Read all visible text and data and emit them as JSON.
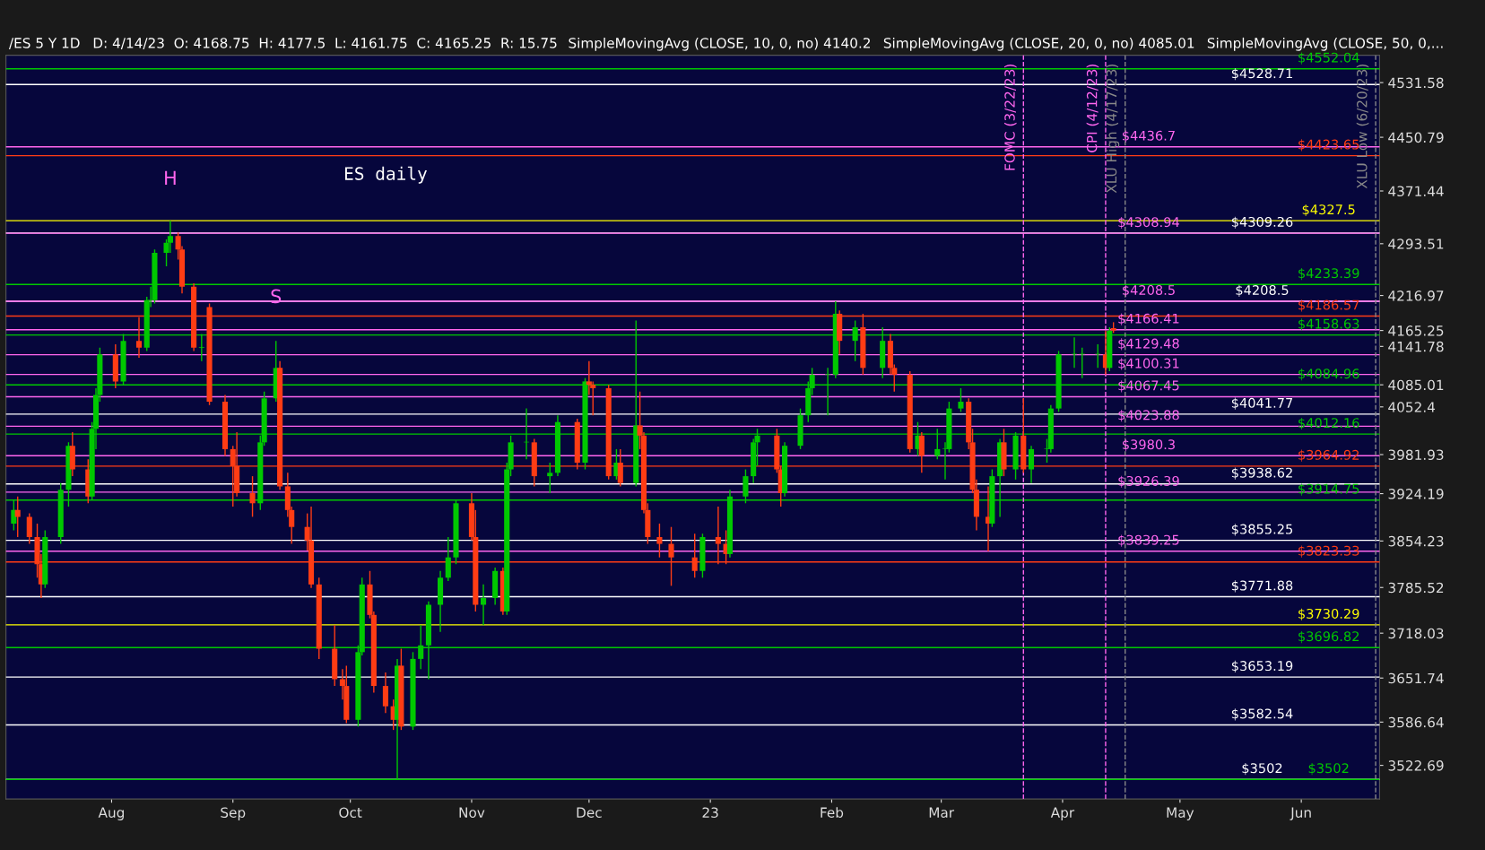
{
  "chart_data": {
    "type": "candlestick",
    "title": "ES daily",
    "annotations": [
      "/ES 5 Y 1D",
      "D: 4/14/23  O: 4168.75  H: 4177.5  L: 4161.75  C: 4165.25  R: 15.75",
      "SimpleMovingAvg (CLOSE, 10, 0, no) 4140.2",
      "SimpleMovingAvg (CLOSE, 20, 0, no) 4085.01",
      "SimpleMovingAvg (CLOSE, 50, 0,...",
      "H",
      "S"
    ],
    "x": [
      "2022-07-07",
      "2022-07-08",
      "2022-07-11",
      "2022-07-13",
      "2022-07-14",
      "2022-07-15",
      "2022-07-19",
      "2022-07-21",
      "2022-07-22",
      "2022-07-26",
      "2022-07-27",
      "2022-07-28",
      "2022-07-29",
      "2022-08-02",
      "2022-08-04",
      "2022-08-08",
      "2022-08-10",
      "2022-08-11",
      "2022-08-12",
      "2022-08-15",
      "2022-08-16",
      "2022-08-18",
      "2022-08-19",
      "2022-08-22",
      "2022-08-24",
      "2022-08-26",
      "2022-08-30",
      "2022-09-01",
      "2022-09-02",
      "2022-09-06",
      "2022-09-08",
      "2022-09-09",
      "2022-09-12",
      "2022-09-13",
      "2022-09-15",
      "2022-09-16",
      "2022-09-20",
      "2022-09-21",
      "2022-09-23",
      "2022-09-27",
      "2022-09-29",
      "2022-09-30",
      "2022-10-03",
      "2022-10-04",
      "2022-10-06",
      "2022-10-07",
      "2022-10-10",
      "2022-10-12",
      "2022-10-13",
      "2022-10-14",
      "2022-10-17",
      "2022-10-19",
      "2022-10-21",
      "2022-10-24",
      "2022-10-26",
      "2022-10-28",
      "2022-11-01",
      "2022-11-02",
      "2022-11-04",
      "2022-11-07",
      "2022-11-09",
      "2022-11-10",
      "2022-11-11",
      "2022-11-15",
      "2022-11-17",
      "2022-11-21",
      "2022-11-23",
      "2022-11-28",
      "2022-11-30",
      "2022-12-01",
      "2022-12-02",
      "2022-12-06",
      "2022-12-08",
      "2022-12-09",
      "2022-12-13",
      "2022-12-14",
      "2022-12-15",
      "2022-12-16",
      "2022-12-19",
      "2022-12-22",
      "2022-12-28",
      "2022-12-30",
      "2023-01-03",
      "2023-01-05",
      "2023-01-06",
      "2023-01-10",
      "2023-01-12",
      "2023-01-13",
      "2023-01-18",
      "2023-01-19",
      "2023-01-20",
      "2023-01-24",
      "2023-01-26",
      "2023-01-27",
      "2023-01-31",
      "2023-02-02",
      "2023-02-03",
      "2023-02-07",
      "2023-02-09",
      "2023-02-14",
      "2023-02-16",
      "2023-02-17",
      "2023-02-21",
      "2023-02-23",
      "2023-02-24",
      "2023-02-28",
      "2023-03-02",
      "2023-03-03",
      "2023-03-06",
      "2023-03-08",
      "2023-03-09",
      "2023-03-10",
      "2023-03-13",
      "2023-03-14",
      "2023-03-16",
      "2023-03-17",
      "2023-03-20",
      "2023-03-22",
      "2023-03-24",
      "2023-03-28",
      "2023-03-29",
      "2023-03-31",
      "2023-04-04",
      "2023-04-06",
      "2023-04-10",
      "2023-04-12",
      "2023-04-13",
      "2023-04-14"
    ],
    "ohlc": [
      [
        3880,
        3915,
        3870,
        3900
      ],
      [
        3900,
        3920,
        3860,
        3890
      ],
      [
        3890,
        3895,
        3850,
        3860
      ],
      [
        3860,
        3880,
        3800,
        3820
      ],
      [
        3820,
        3835,
        3770,
        3790
      ],
      [
        3790,
        3870,
        3785,
        3860
      ],
      [
        3860,
        3940,
        3850,
        3930
      ],
      [
        3930,
        4000,
        3905,
        3995
      ],
      [
        3995,
        4015,
        3950,
        3960
      ],
      [
        3960,
        3975,
        3910,
        3920
      ],
      [
        3920,
        4030,
        3915,
        4020
      ],
      [
        4020,
        4080,
        3990,
        4070
      ],
      [
        4070,
        4140,
        4060,
        4130
      ],
      [
        4130,
        4145,
        4080,
        4090
      ],
      [
        4090,
        4160,
        4085,
        4150
      ],
      [
        4150,
        4185,
        4125,
        4140
      ],
      [
        4140,
        4215,
        4135,
        4210
      ],
      [
        4210,
        4230,
        4200,
        4210
      ],
      [
        4210,
        4285,
        4205,
        4280
      ],
      [
        4280,
        4300,
        4260,
        4295
      ],
      [
        4295,
        4327.5,
        4280,
        4305
      ],
      [
        4305,
        4310,
        4270,
        4285
      ],
      [
        4285,
        4290,
        4220,
        4230
      ],
      [
        4230,
        4235,
        4135,
        4140
      ],
      [
        4140,
        4160,
        4120,
        4140
      ],
      [
        4200,
        4205,
        4055,
        4060
      ],
      [
        4060,
        4070,
        3980,
        3990
      ],
      [
        3990,
        3995,
        3905,
        3965
      ],
      [
        3965,
        4015,
        3920,
        3925
      ],
      [
        3925,
        3950,
        3890,
        3910
      ],
      [
        3910,
        4010,
        3900,
        4000
      ],
      [
        4000,
        4075,
        3995,
        4065
      ],
      [
        4065,
        4150,
        4060,
        4110
      ],
      [
        4110,
        4120,
        3930,
        3935
      ],
      [
        3935,
        3955,
        3890,
        3900
      ],
      [
        3900,
        3905,
        3850,
        3875
      ],
      [
        3875,
        3895,
        3840,
        3855
      ],
      [
        3855,
        3905,
        3785,
        3790
      ],
      [
        3790,
        3800,
        3680,
        3695
      ],
      [
        3695,
        3730,
        3640,
        3650
      ],
      [
        3650,
        3665,
        3620,
        3640
      ],
      [
        3640,
        3670,
        3585,
        3590
      ],
      [
        3590,
        3700,
        3580,
        3690
      ],
      [
        3690,
        3800,
        3685,
        3790
      ],
      [
        3790,
        3810,
        3740,
        3745
      ],
      [
        3745,
        3750,
        3630,
        3640
      ],
      [
        3640,
        3660,
        3600,
        3610
      ],
      [
        3610,
        3620,
        3575,
        3590
      ],
      [
        3590,
        3680,
        3502,
        3670
      ],
      [
        3670,
        3695,
        3575,
        3580
      ],
      [
        3580,
        3690,
        3575,
        3680
      ],
      [
        3680,
        3730,
        3665,
        3700
      ],
      [
        3700,
        3765,
        3650,
        3760
      ],
      [
        3760,
        3810,
        3720,
        3800
      ],
      [
        3800,
        3860,
        3795,
        3830
      ],
      [
        3830,
        3915,
        3820,
        3910
      ],
      [
        3910,
        3925,
        3855,
        3860
      ],
      [
        3860,
        3900,
        3750,
        3760
      ],
      [
        3760,
        3790,
        3730,
        3770
      ],
      [
        3770,
        3815,
        3760,
        3810
      ],
      [
        3810,
        3815,
        3745,
        3750
      ],
      [
        3750,
        3970,
        3745,
        3960
      ],
      [
        3960,
        4010,
        3950,
        4000
      ],
      [
        4000,
        4050,
        3975,
        4000
      ],
      [
        4000,
        4005,
        3935,
        3950
      ],
      [
        3950,
        3970,
        3925,
        3955
      ],
      [
        3955,
        4040,
        3950,
        4030
      ],
      [
        4030,
        4035,
        3960,
        3970
      ],
      [
        3970,
        4095,
        3960,
        4090
      ],
      [
        4090,
        4120,
        4070,
        4085
      ],
      [
        4085,
        4090,
        4040,
        4080
      ],
      [
        4080,
        4085,
        3945,
        3950
      ],
      [
        3950,
        3990,
        3945,
        3970
      ],
      [
        3970,
        3990,
        3935,
        3940
      ],
      [
        3940,
        4180,
        3935,
        4025
      ],
      [
        4025,
        4075,
        3990,
        4010
      ],
      [
        4010,
        4015,
        3895,
        3900
      ],
      [
        3900,
        3910,
        3850,
        3860
      ],
      [
        3860,
        3880,
        3830,
        3850
      ],
      [
        3850,
        3875,
        3788,
        3830
      ],
      [
        3830,
        3865,
        3800,
        3810
      ],
      [
        3810,
        3865,
        3800,
        3860
      ],
      [
        3860,
        3905,
        3820,
        3850
      ],
      [
        3850,
        3870,
        3820,
        3835
      ],
      [
        3835,
        3930,
        3830,
        3920
      ],
      [
        3920,
        3960,
        3910,
        3950
      ],
      [
        3950,
        4005,
        3940,
        4000
      ],
      [
        4000,
        4020,
        3965,
        4010
      ],
      [
        4010,
        4020,
        3955,
        3960
      ],
      [
        3960,
        3965,
        3905,
        3925
      ],
      [
        3925,
        4000,
        3920,
        3995
      ],
      [
        3995,
        4050,
        3990,
        4040
      ],
      [
        4040,
        4090,
        4030,
        4080
      ],
      [
        4080,
        4110,
        4070,
        4100
      ],
      [
        4100,
        4110,
        4040,
        4100
      ],
      [
        4100,
        4208.5,
        4095,
        4190
      ],
      [
        4190,
        4195,
        4130,
        4150
      ],
      [
        4150,
        4180,
        4120,
        4170
      ],
      [
        4170,
        4190,
        4100,
        4110
      ],
      [
        4110,
        4170,
        4095,
        4150
      ],
      [
        4150,
        4160,
        4100,
        4110
      ],
      [
        4110,
        4115,
        4075,
        4100
      ],
      [
        4100,
        4105,
        3985,
        3990
      ],
      [
        3990,
        4030,
        3980,
        4010
      ],
      [
        4010,
        4015,
        3955,
        3980
      ],
      [
        3980,
        4020,
        3975,
        3990
      ],
      [
        3990,
        4000,
        3945,
        3990
      ],
      [
        3990,
        4060,
        3985,
        4050
      ],
      [
        4050,
        4080,
        4045,
        4060
      ],
      [
        4060,
        4065,
        3990,
        4000
      ],
      [
        4000,
        4020,
        3925,
        3930
      ],
      [
        3930,
        3945,
        3870,
        3890
      ],
      [
        3890,
        3935,
        3839.25,
        3880
      ],
      [
        3880,
        3960,
        3875,
        3950
      ],
      [
        3950,
        4005,
        3890,
        4000
      ],
      [
        4000,
        4020,
        3950,
        3960
      ],
      [
        3960,
        4015,
        3945,
        4010
      ],
      [
        4010,
        4065,
        3955,
        3960
      ],
      [
        3960,
        3995,
        3940,
        3990
      ],
      [
        3990,
        4005,
        3970,
        3990
      ],
      [
        3990,
        4055,
        3985,
        4050
      ],
      [
        4050,
        4135,
        4045,
        4130
      ],
      [
        4130,
        4155,
        4110,
        4130
      ],
      [
        4130,
        4140,
        4095,
        4130
      ],
      [
        4130,
        4145,
        4110,
        4130
      ],
      [
        4130,
        4165,
        4100,
        4110
      ],
      [
        4110,
        4170,
        4105,
        4165
      ],
      [
        4168.75,
        4177.5,
        4161.75,
        4165.25
      ]
    ],
    "xlim": [
      "2022-07-05",
      "2023-06-21"
    ],
    "xticks": [
      {
        "value": "2022-08-01",
        "label": "Aug"
      },
      {
        "value": "2022-09-01",
        "label": "Sep"
      },
      {
        "value": "2022-10-01",
        "label": "Oct"
      },
      {
        "value": "2022-11-01",
        "label": "Nov"
      },
      {
        "value": "2022-12-01",
        "label": "Dec"
      },
      {
        "value": "2023-01-01",
        "label": "23"
      },
      {
        "value": "2023-02-01",
        "label": "Feb"
      },
      {
        "value": "2023-03-01",
        "label": "Mar"
      },
      {
        "value": "2023-04-01",
        "label": "Apr"
      },
      {
        "value": "2023-05-01",
        "label": "May"
      },
      {
        "value": "2023-06-01",
        "label": "Jun"
      }
    ],
    "ylim": [
      3473,
      4572
    ],
    "yticks": [
      4531.58,
      4450.79,
      4371.44,
      4293.51,
      4216.97,
      4165.25,
      4141.78,
      4085.01,
      4052.4,
      3981.93,
      3924.19,
      3854.23,
      3785.52,
      3718.03,
      3651.74,
      3586.64,
      3522.69
    ],
    "grid": false,
    "legend": false,
    "ref_lines": [
      {
        "axis": "y",
        "value": 4552.04,
        "label": "$4552.04",
        "color": "#00c800"
      },
      {
        "axis": "y",
        "value": 4528.71,
        "label": "$4528.71",
        "color": "#ffffff"
      },
      {
        "axis": "y",
        "value": 4436.7,
        "label": "$4436.7",
        "color": "#ff66ee"
      },
      {
        "axis": "y",
        "value": 4423.65,
        "label": "$4423.65",
        "color": "#ff3c14"
      },
      {
        "axis": "y",
        "value": 4327.5,
        "label": "$4327.5",
        "color": "#ffff00"
      },
      {
        "axis": "y",
        "value": 4309.26,
        "label": "$4309.26",
        "color": "#ffffff"
      },
      {
        "axis": "y",
        "value": 4308.94,
        "label": "$4308.94",
        "color": "#ff66ee"
      },
      {
        "axis": "y",
        "value": 4233.39,
        "label": "$4233.39",
        "color": "#00c800"
      },
      {
        "axis": "y",
        "value": 4208.5,
        "label": "$4208.5",
        "color": "#ffffff"
      },
      {
        "axis": "y",
        "value": 4208.49,
        "label": "$4208.5",
        "color": "#ff66ee"
      },
      {
        "axis": "y",
        "value": 4186.57,
        "label": "$4186.57",
        "color": "#ff3c14"
      },
      {
        "axis": "y",
        "value": 4166.41,
        "label": "$4166.41",
        "color": "#ff66ee"
      },
      {
        "axis": "y",
        "value": 4158.63,
        "label": "$4158.63",
        "color": "#00c800"
      },
      {
        "axis": "y",
        "value": 4129.48,
        "label": "$4129.48",
        "color": "#ff66ee"
      },
      {
        "axis": "y",
        "value": 4100.31,
        "label": "$4100.31",
        "color": "#ff66ee"
      },
      {
        "axis": "y",
        "value": 4084.96,
        "label": "$4084.96",
        "color": "#00c800"
      },
      {
        "axis": "y",
        "value": 4067.45,
        "label": "$4067.45",
        "color": "#ff66ee"
      },
      {
        "axis": "y",
        "value": 4041.77,
        "label": "$4041.77",
        "color": "#ffffff"
      },
      {
        "axis": "y",
        "value": 4023.88,
        "label": "$4023.88",
        "color": "#ff66ee"
      },
      {
        "axis": "y",
        "value": 4012.16,
        "label": "$4012.16",
        "color": "#00c800"
      },
      {
        "axis": "y",
        "value": 3980.3,
        "label": "$3980.3",
        "color": "#ff66ee"
      },
      {
        "axis": "y",
        "value": 3964.92,
        "label": "$3964.92",
        "color": "#ff3c14"
      },
      {
        "axis": "y",
        "value": 3938.62,
        "label": "$3938.62",
        "color": "#ffffff"
      },
      {
        "axis": "y",
        "value": 3926.39,
        "label": "$3926.39",
        "color": "#ff66ee"
      },
      {
        "axis": "y",
        "value": 3914.75,
        "label": "$3914.75",
        "color": "#00c800"
      },
      {
        "axis": "y",
        "value": 3855.25,
        "label": "$3855.25",
        "color": "#ffffff"
      },
      {
        "axis": "y",
        "value": 3839.25,
        "label": "$3839.25",
        "color": "#ff66ee"
      },
      {
        "axis": "y",
        "value": 3823.33,
        "label": "$3823.33",
        "color": "#ff3c14"
      },
      {
        "axis": "y",
        "value": 3771.88,
        "label": "$3771.88",
        "color": "#ffffff"
      },
      {
        "axis": "y",
        "value": 3730.29,
        "label": "$3730.29",
        "color": "#ffff00"
      },
      {
        "axis": "y",
        "value": 3696.82,
        "label": "$3696.82",
        "color": "#00c800"
      },
      {
        "axis": "y",
        "value": 3653.19,
        "label": "$3653.19",
        "color": "#ffffff"
      },
      {
        "axis": "y",
        "value": 3582.54,
        "label": "$3582.54",
        "color": "#ffffff"
      },
      {
        "axis": "y",
        "value": 3502,
        "label": "$3502",
        "color": "#ffffff"
      },
      {
        "axis": "y",
        "value": 3501.99,
        "label": "$3502",
        "color": "#00c800"
      },
      {
        "axis": "x",
        "value": "2023-03-22",
        "label": "FOMC (3/22/23)",
        "color": "#ff66ee",
        "line_style": "dashed"
      },
      {
        "axis": "x",
        "value": "2023-04-12",
        "label": "CPI (4/12/23)",
        "color": "#ff66ee",
        "line_style": "dashed"
      },
      {
        "axis": "x",
        "value": "2023-04-17",
        "label": "XLU High (4/17/23)",
        "color": "#888888",
        "line_style": "dashed"
      },
      {
        "axis": "x",
        "value": "2023-06-20",
        "label": "XLU Low (6/20/23)",
        "color": "#888888",
        "line_style": "dashed"
      }
    ]
  }
}
